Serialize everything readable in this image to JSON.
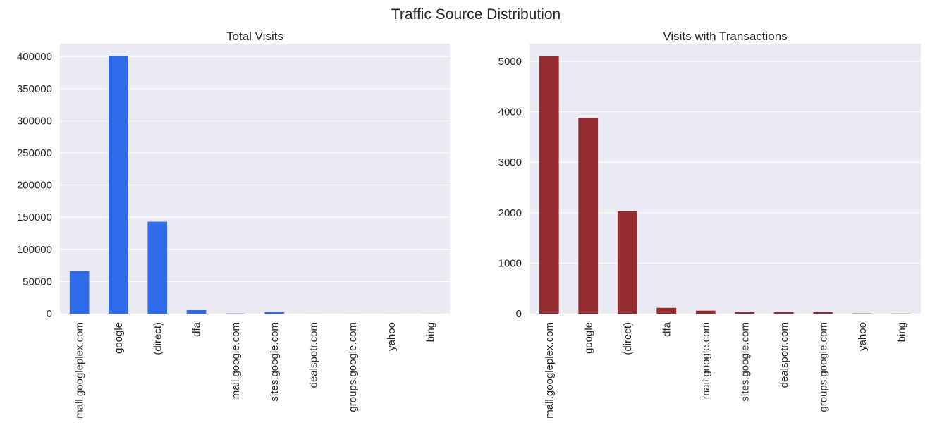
{
  "figure": {
    "title": "Traffic Source Distribution"
  },
  "chart_data": [
    {
      "type": "bar",
      "title": "Total Visits",
      "xlabel": "",
      "ylabel": "",
      "color": "#1f5fe8",
      "categories": [
        "mall.googleplex.com",
        "google",
        "(direct)",
        "dfa",
        "mail.google.com",
        "sites.google.com",
        "dealspotr.com",
        "groups.google.com",
        "yahoo",
        "bing"
      ],
      "values": [
        66000,
        401000,
        143000,
        5500,
        300,
        2500,
        100,
        100,
        100,
        100
      ],
      "ylim": [
        0,
        420000
      ],
      "yticks": [
        0,
        50000,
        100000,
        150000,
        200000,
        250000,
        300000,
        350000,
        400000
      ],
      "ytick_labels": [
        "0",
        "50000",
        "100000",
        "150000",
        "200000",
        "250000",
        "300000",
        "350000",
        "400000"
      ],
      "grid": true
    },
    {
      "type": "bar",
      "title": "Visits with Transactions",
      "xlabel": "",
      "ylabel": "",
      "color": "#8b1a1f",
      "categories": [
        "mall.googleplex.com",
        "google",
        "(direct)",
        "dfa",
        "mail.google.com",
        "sites.google.com",
        "dealspotr.com",
        "groups.google.com",
        "yahoo",
        "bing"
      ],
      "values": [
        5100,
        3880,
        2030,
        115,
        60,
        30,
        28,
        28,
        5,
        3
      ],
      "ylim": [
        0,
        5350
      ],
      "yticks": [
        0,
        1000,
        2000,
        3000,
        4000,
        5000
      ],
      "ytick_labels": [
        "0",
        "1000",
        "2000",
        "3000",
        "4000",
        "5000"
      ],
      "grid": true
    }
  ]
}
